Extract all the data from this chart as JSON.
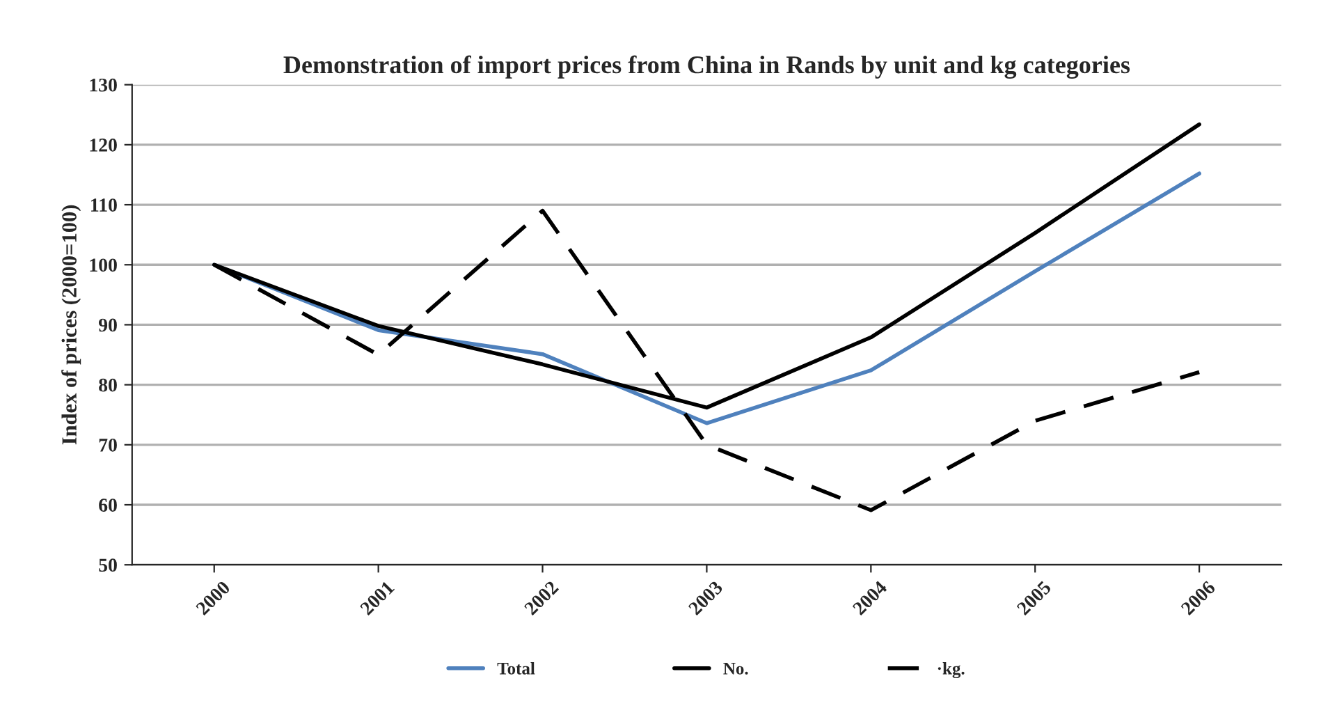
{
  "chart_data": {
    "type": "line",
    "title": "Demonstration of import prices from China in Rands by unit and kg categories",
    "ylabel": "Index of prices (2000=100)",
    "categories": [
      "2000",
      "2001",
      "2002",
      "2003",
      "2004",
      "2005",
      "2006"
    ],
    "series": [
      {
        "name": "Total",
        "color": "#4f81bd",
        "line_style": "solid",
        "values": [
          100,
          89.1,
          85.1,
          73.6,
          82.4,
          98.9,
          115.2
        ]
      },
      {
        "name": "No.",
        "color": "#000000",
        "line_style": "solid",
        "values": [
          100,
          89.8,
          83.4,
          76.2,
          87.9,
          105.3,
          123.4
        ]
      },
      {
        "name": "·kg.",
        "color": "#000000",
        "line_style": "dashed",
        "values": [
          100,
          85,
          109,
          70,
          59.1,
          74,
          82.1
        ]
      }
    ],
    "ylim": [
      50,
      130
    ],
    "yticks": [
      50,
      60,
      70,
      80,
      90,
      100,
      110,
      120,
      130
    ],
    "grid": "y",
    "legend": "bottom",
    "marker": "none"
  }
}
